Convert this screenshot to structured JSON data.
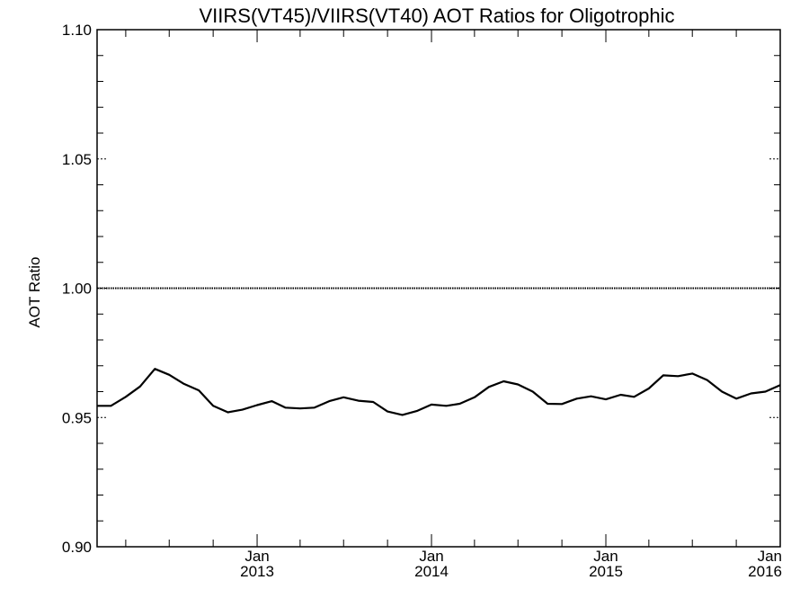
{
  "chart_data": {
    "type": "line",
    "title": "VIIRS(VT45)/VIIRS(VT40)  AOT Ratios for Oligotrophic",
    "xlabel": "",
    "ylabel": "AOT Ratio",
    "ylim": [
      0.9,
      1.1
    ],
    "yticks": [
      "0.90",
      "0.95",
      "1.00",
      "1.05",
      "1.10"
    ],
    "xlim": [
      "2012-02-01",
      "2016-01-01"
    ],
    "xticks": [
      {
        "date": "2013-01-01",
        "month": "Jan",
        "year": "2013"
      },
      {
        "date": "2014-01-01",
        "month": "Jan",
        "year": "2014"
      },
      {
        "date": "2015-01-01",
        "month": "Jan",
        "year": "2015"
      },
      {
        "date": "2016-01-01",
        "month": "Jan",
        "year": "2016"
      }
    ],
    "reference_line": 1.0,
    "grid": false,
    "series": [
      {
        "x": [
          "2012-02-01",
          "2012-03-01",
          "2012-04-01",
          "2012-05-01",
          "2012-06-01",
          "2012-07-01",
          "2012-08-01",
          "2012-09-01",
          "2012-10-01",
          "2012-11-01",
          "2012-12-01",
          "2013-01-01",
          "2013-02-01",
          "2013-03-01",
          "2013-04-01",
          "2013-05-01",
          "2013-06-01",
          "2013-07-01",
          "2013-08-01",
          "2013-09-01",
          "2013-10-01",
          "2013-11-01",
          "2013-12-01",
          "2014-01-01",
          "2014-02-01",
          "2014-03-01",
          "2014-04-01",
          "2014-05-01",
          "2014-06-01",
          "2014-07-01",
          "2014-08-01",
          "2014-09-01",
          "2014-10-01",
          "2014-11-01",
          "2014-12-01",
          "2015-01-01",
          "2015-02-01",
          "2015-03-01",
          "2015-04-01",
          "2015-05-01",
          "2015-06-01",
          "2015-07-01",
          "2015-08-01",
          "2015-09-01",
          "2015-10-01",
          "2015-11-01",
          "2015-12-01",
          "2016-01-01"
        ],
        "values": [
          0.9545,
          0.9545,
          0.958,
          0.962,
          0.9688,
          0.9665,
          0.963,
          0.9605,
          0.9545,
          0.952,
          0.953,
          0.9548,
          0.9563,
          0.9538,
          0.9535,
          0.9538,
          0.9563,
          0.9578,
          0.9565,
          0.956,
          0.9523,
          0.951,
          0.9525,
          0.955,
          0.9545,
          0.9553,
          0.9578,
          0.9618,
          0.964,
          0.9628,
          0.96,
          0.9553,
          0.9552,
          0.9573,
          0.9582,
          0.957,
          0.9588,
          0.958,
          0.9612,
          0.9663,
          0.966,
          0.967,
          0.9645,
          0.96,
          0.9573,
          0.9593,
          0.96,
          0.9625
        ]
      }
    ]
  }
}
